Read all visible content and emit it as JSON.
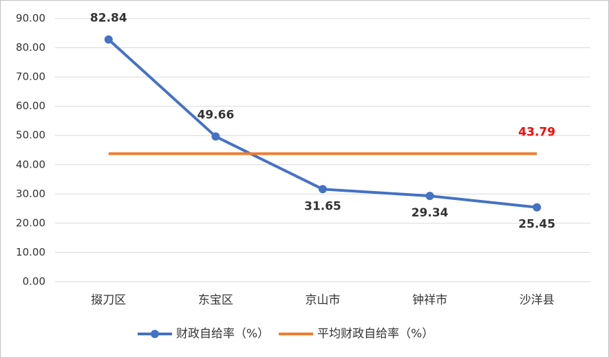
{
  "chart_data": {
    "type": "line",
    "categories": [
      "掇刀区",
      "东宝区",
      "京山市",
      "钟祥市",
      "沙洋县"
    ],
    "series": [
      {
        "name": "财政自给率（%）",
        "color": "#4472c4",
        "values": [
          82.84,
          49.66,
          31.65,
          29.34,
          25.45
        ],
        "marker": "circle",
        "data_labels": "all",
        "label_positions": [
          "above",
          "above",
          "below",
          "below",
          "below"
        ],
        "label_color": "#333333"
      },
      {
        "name": "平均财政自给率（%）",
        "color": "#ed7d31",
        "values": [
          43.79,
          43.79,
          43.79,
          43.79,
          43.79
        ],
        "marker": "none",
        "data_labels": "last",
        "label_positions": [
          "above",
          "above",
          "above",
          "above",
          "above"
        ],
        "label_color": "#ff0000"
      }
    ],
    "ylim": [
      0,
      90
    ],
    "yticks": [
      {
        "value": 0,
        "label": "0.00"
      },
      {
        "value": 10,
        "label": "10.00"
      },
      {
        "value": 20,
        "label": "20.00"
      },
      {
        "value": 30,
        "label": "30.00"
      },
      {
        "value": 40,
        "label": "40.00"
      },
      {
        "value": 50,
        "label": "50.00"
      },
      {
        "value": 60,
        "label": "60.00"
      },
      {
        "value": 70,
        "label": "70.00"
      },
      {
        "value": 80,
        "label": "80.00"
      },
      {
        "value": 90,
        "label": "90.00"
      }
    ],
    "grid": true,
    "legend": "bottom"
  }
}
